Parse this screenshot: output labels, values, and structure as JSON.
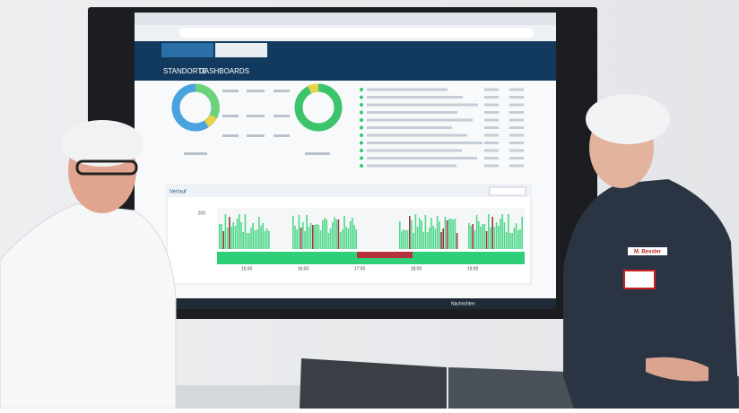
{
  "screen": {
    "nav": {
      "tabs": [
        "STANDORTE",
        "DASHBOARDS"
      ]
    },
    "panel": {
      "title": "Verlauf",
      "y_tick": "200",
      "times": [
        "15:00",
        "16:00",
        "17:00",
        "18:00",
        "19:00"
      ]
    },
    "taskbar": {
      "news": "Nachrichten"
    }
  },
  "badge": {
    "name": "M. Bessler"
  }
}
